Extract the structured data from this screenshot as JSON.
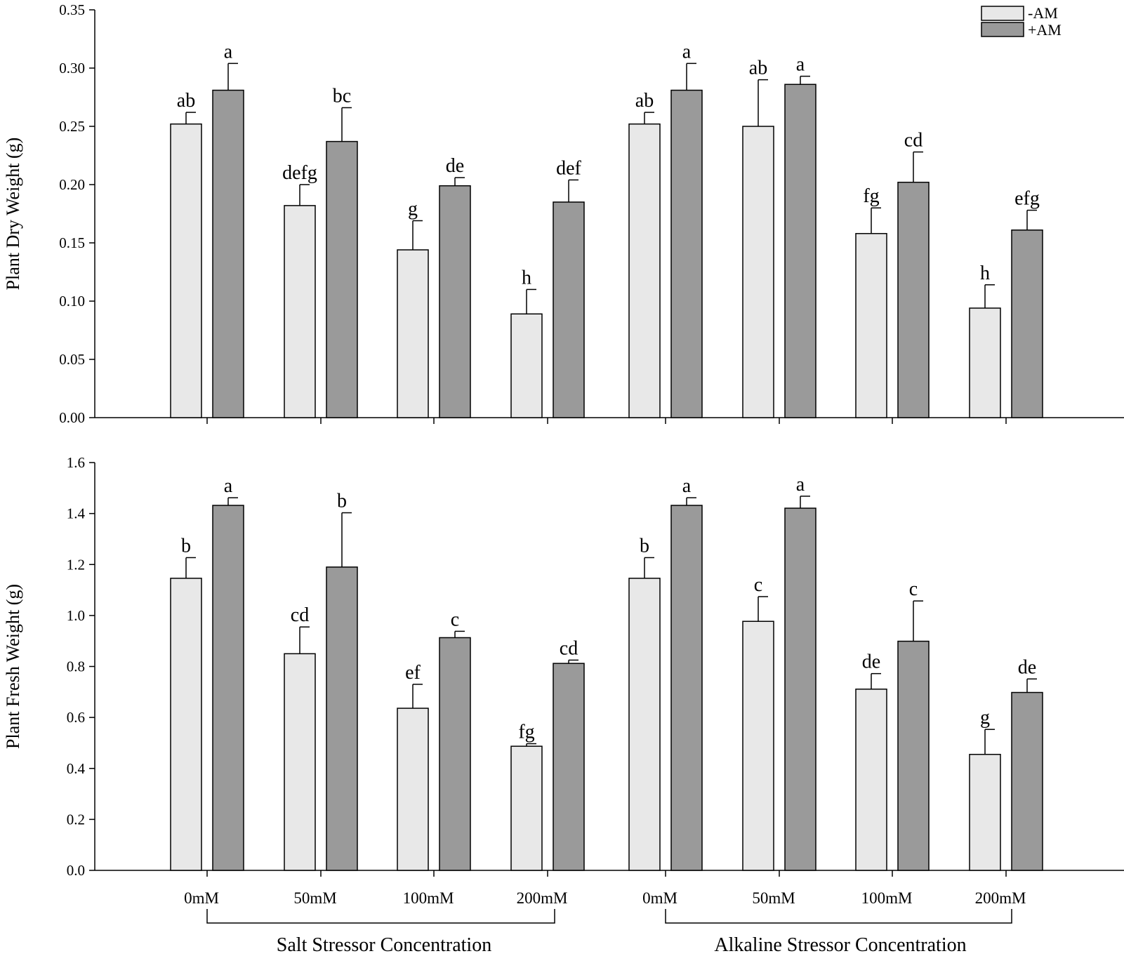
{
  "chart_data": [
    {
      "type": "bar",
      "panel": "top",
      "ylabel": "Plant Dry Weight (g)",
      "ylim": [
        0,
        0.35
      ],
      "yticks": [
        "0.00",
        "0.05",
        "0.10",
        "0.15",
        "0.20",
        "0.25",
        "0.30",
        "0.35"
      ],
      "categories": [
        "0mM",
        "50mM",
        "100mM",
        "200mM",
        "0mM",
        "50mM",
        "100mM",
        "200mM"
      ],
      "series": [
        {
          "name": "-AM",
          "values": [
            0.252,
            0.182,
            0.144,
            0.089,
            0.252,
            0.25,
            0.158,
            0.094
          ],
          "errors": [
            0.01,
            0.018,
            0.025,
            0.021,
            0.01,
            0.04,
            0.022,
            0.02
          ],
          "letters": [
            "ab",
            "defg",
            "g",
            "h",
            "ab",
            "ab",
            "fg",
            "h"
          ]
        },
        {
          "name": "+AM",
          "values": [
            0.281,
            0.237,
            0.199,
            0.185,
            0.281,
            0.286,
            0.202,
            0.161
          ],
          "errors": [
            0.023,
            0.029,
            0.007,
            0.019,
            0.023,
            0.007,
            0.026,
            0.017
          ],
          "letters": [
            "a",
            "bc",
            "de",
            "def",
            "a",
            "a",
            "cd",
            "efg"
          ]
        }
      ]
    },
    {
      "type": "bar",
      "panel": "bottom",
      "ylabel": "Plant Fresh Weight (g)",
      "ylim": [
        0,
        1.6
      ],
      "yticks": [
        "0.0",
        "0.2",
        "0.4",
        "0.6",
        "0.8",
        "1.0",
        "1.2",
        "1.4",
        "1.6"
      ],
      "categories": [
        "0mM",
        "50mM",
        "100mM",
        "200mM",
        "0mM",
        "50mM",
        "100mM",
        "200mM"
      ],
      "series": [
        {
          "name": "-AM",
          "values": [
            1.146,
            0.85,
            0.636,
            0.487,
            1.146,
            0.977,
            0.711,
            0.455
          ],
          "errors": [
            0.081,
            0.105,
            0.094,
            0.01,
            0.081,
            0.097,
            0.061,
            0.098
          ],
          "letters": [
            "b",
            "cd",
            "ef",
            "fg",
            "b",
            "c",
            "de",
            "g"
          ]
        },
        {
          "name": "+AM",
          "values": [
            1.432,
            1.19,
            0.913,
            0.812,
            1.432,
            1.421,
            0.899,
            0.698
          ],
          "errors": [
            0.03,
            0.213,
            0.025,
            0.013,
            0.03,
            0.047,
            0.158,
            0.053
          ],
          "letters": [
            "a",
            "b",
            "c",
            "cd",
            "a",
            "a",
            "c",
            "de"
          ]
        }
      ]
    }
  ],
  "groups": [
    "Salt Stressor Concentration",
    "Alkaline Stressor Concentration"
  ],
  "legend": [
    "-AM",
    "+AM"
  ],
  "colors": {
    "minus_am": "#e8e8e8",
    "plus_am": "#9a9a9a"
  }
}
